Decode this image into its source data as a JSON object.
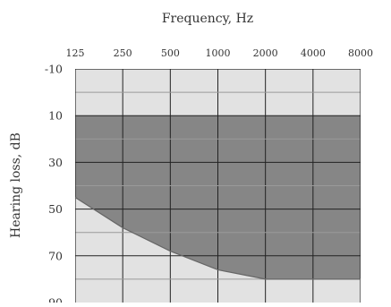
{
  "chart_data": {
    "type": "area",
    "title": "",
    "xlabel": "Frequency,  Hz",
    "ylabel": "Hearing loss, dB",
    "x_ticks": [
      "125",
      "250",
      "500",
      "1000",
      "2000",
      "4000",
      "8000"
    ],
    "y_ticks": [
      "-10",
      "10",
      "30",
      "50",
      "70",
      "90"
    ],
    "x_scale": "log",
    "y_inverted": true,
    "ylim": [
      -10,
      90
    ],
    "grid": true,
    "shaded_region": {
      "upper_bound_db": 10,
      "lower_bound": {
        "x": [
          125,
          250,
          500,
          1000,
          2000,
          4000,
          8000
        ],
        "y": [
          45,
          58,
          68,
          76,
          80,
          80,
          80
        ]
      }
    },
    "colors": {
      "background": "#e2e2e2",
      "shaded": "#868686",
      "grid": "#222222",
      "minor_grid": "#9a9a9a",
      "boundary": "#666666"
    }
  }
}
